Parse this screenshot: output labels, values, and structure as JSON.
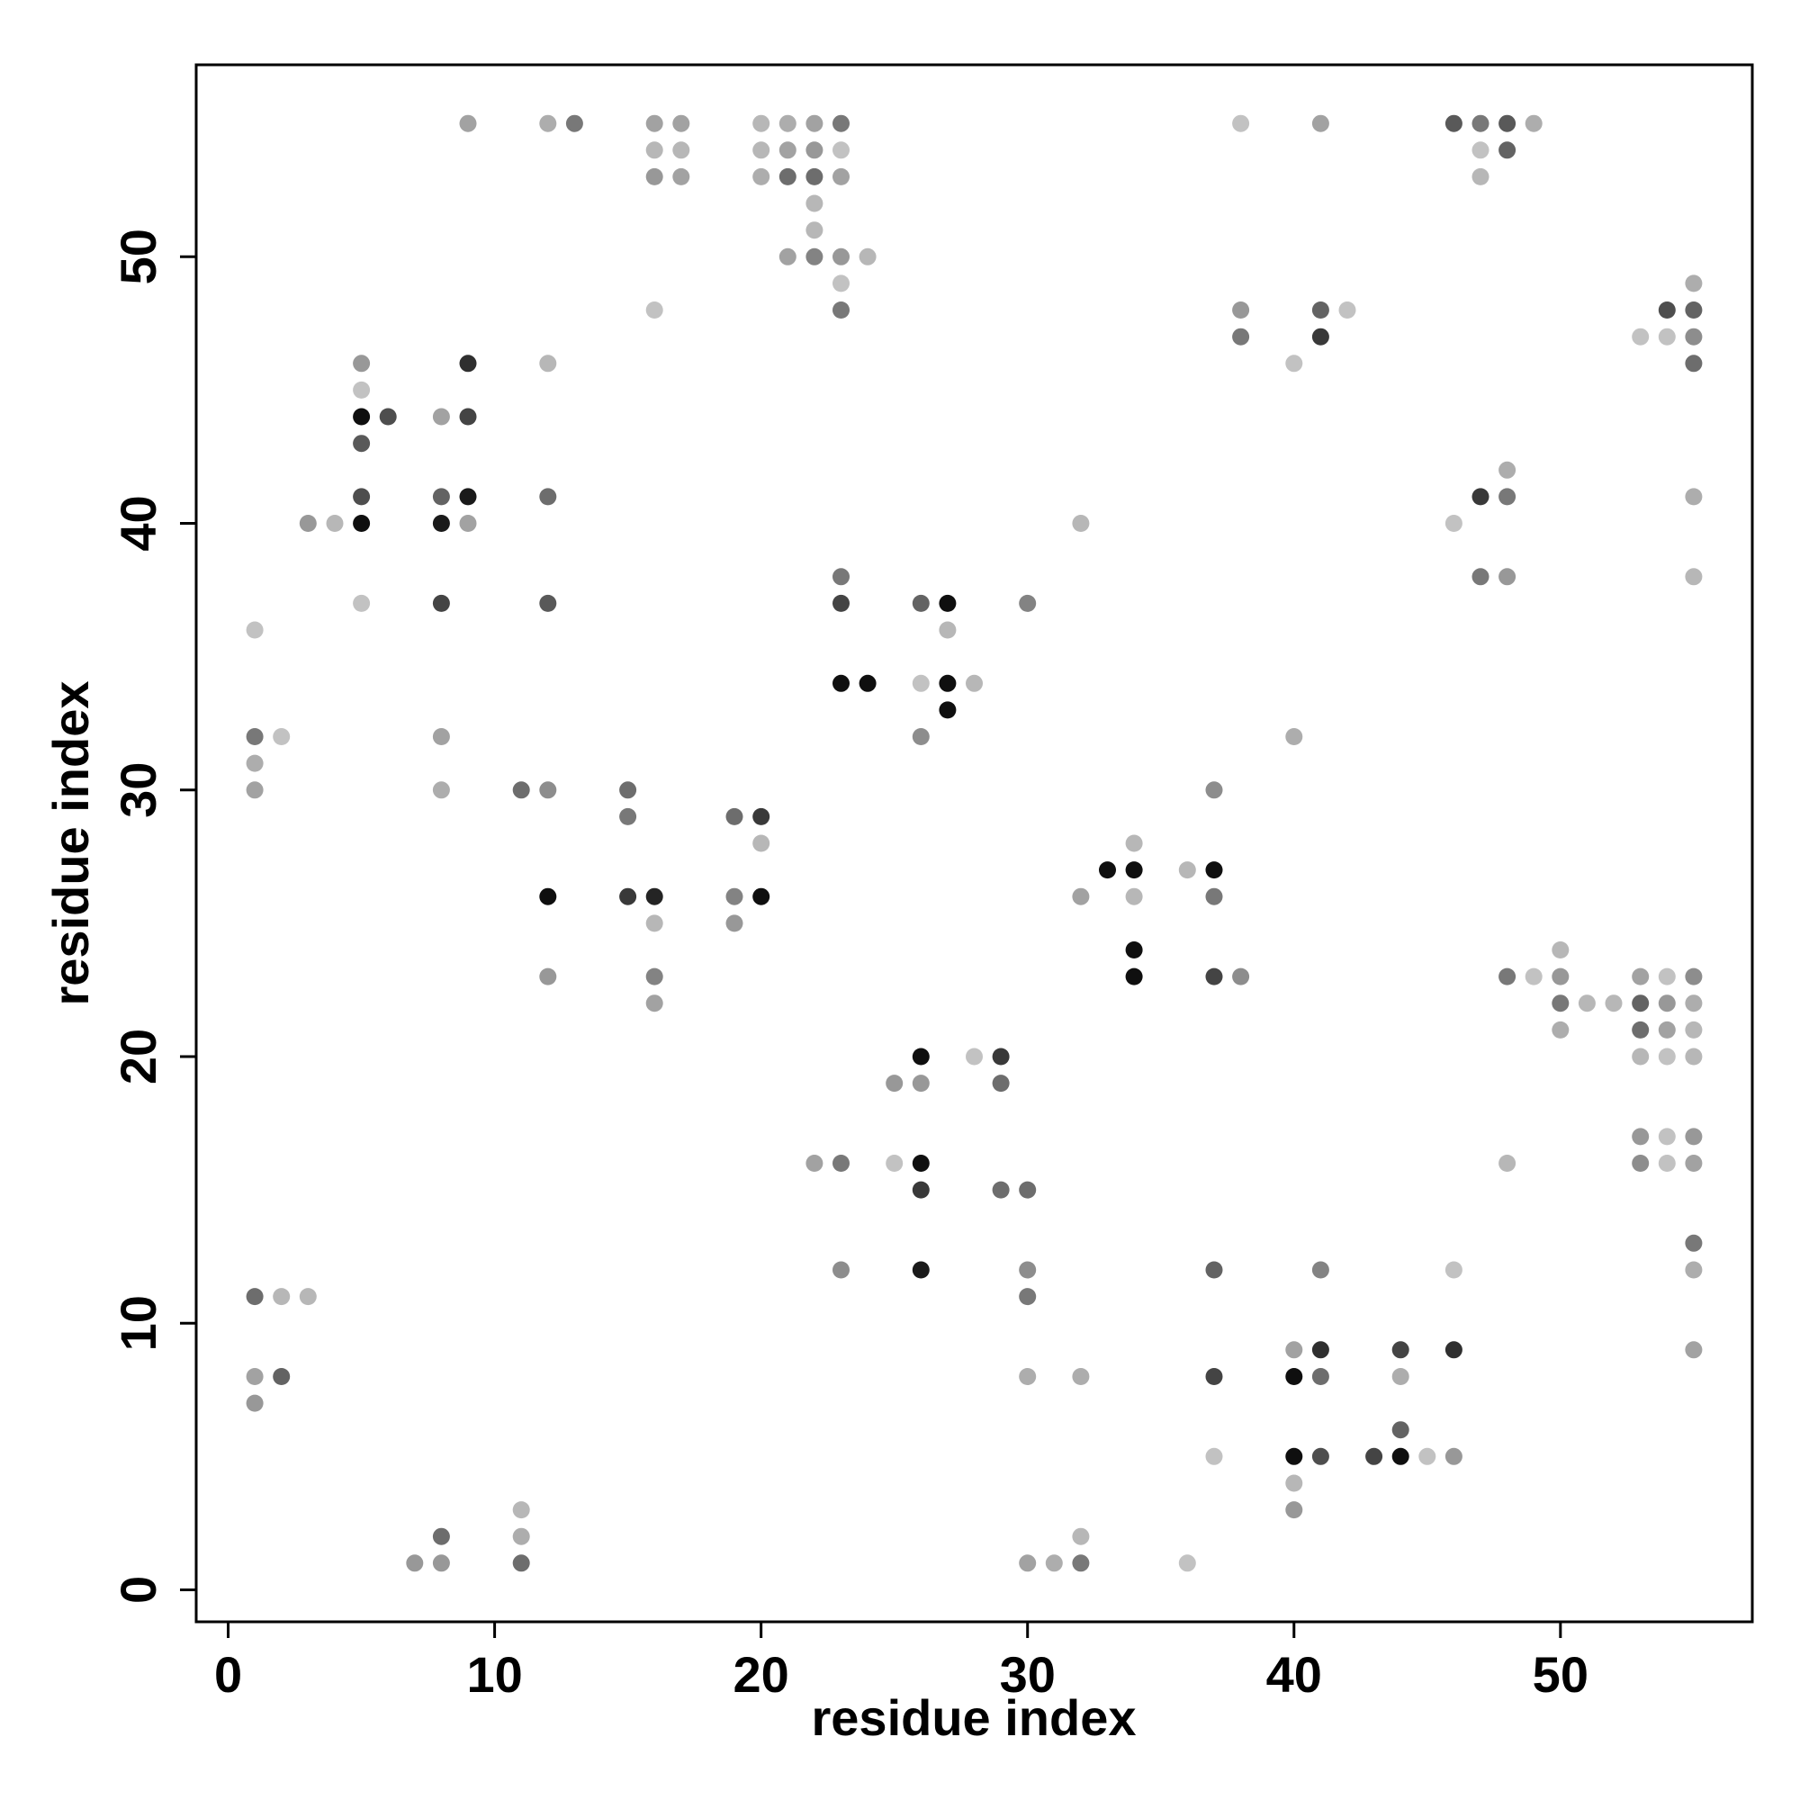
{
  "chart_data": {
    "type": "scatter",
    "title": "",
    "xlabel": "residue index",
    "ylabel": "residue index",
    "xlim": [
      -1.2,
      57.2
    ],
    "ylim": [
      -1.2,
      57.2
    ],
    "xticks": [
      0,
      10,
      20,
      30,
      40,
      50
    ],
    "yticks": [
      0,
      10,
      20,
      30,
      40,
      50
    ],
    "grid": false,
    "legend": "none",
    "value_encoding": "grayscale shade of each point (0 = light gray, 1 = black)",
    "points": [
      {
        "x": 1,
        "y": 7,
        "v": 0.35
      },
      {
        "x": 1,
        "y": 8,
        "v": 0.3
      },
      {
        "x": 1,
        "y": 11,
        "v": 0.55
      },
      {
        "x": 2,
        "y": 8,
        "v": 0.6
      },
      {
        "x": 2,
        "y": 11,
        "v": 0.2
      },
      {
        "x": 3,
        "y": 11,
        "v": 0.2
      },
      {
        "x": 1,
        "y": 30,
        "v": 0.3
      },
      {
        "x": 1,
        "y": 31,
        "v": 0.25
      },
      {
        "x": 1,
        "y": 32,
        "v": 0.5
      },
      {
        "x": 2,
        "y": 32,
        "v": 0.15
      },
      {
        "x": 1,
        "y": 36,
        "v": 0.15
      },
      {
        "x": 3,
        "y": 40,
        "v": 0.35
      },
      {
        "x": 4,
        "y": 40,
        "v": 0.2
      },
      {
        "x": 5,
        "y": 37,
        "v": 0.15
      },
      {
        "x": 5,
        "y": 40,
        "v": 1.0
      },
      {
        "x": 5,
        "y": 41,
        "v": 0.7
      },
      {
        "x": 5,
        "y": 43,
        "v": 0.65
      },
      {
        "x": 5,
        "y": 44,
        "v": 1.0
      },
      {
        "x": 5,
        "y": 45,
        "v": 0.15
      },
      {
        "x": 5,
        "y": 46,
        "v": 0.35
      },
      {
        "x": 6,
        "y": 44,
        "v": 0.7
      },
      {
        "x": 8,
        "y": 30,
        "v": 0.25
      },
      {
        "x": 8,
        "y": 32,
        "v": 0.3
      },
      {
        "x": 8,
        "y": 37,
        "v": 0.75
      },
      {
        "x": 8,
        "y": 40,
        "v": 0.95
      },
      {
        "x": 8,
        "y": 41,
        "v": 0.6
      },
      {
        "x": 8,
        "y": 44,
        "v": 0.3
      },
      {
        "x": 9,
        "y": 40,
        "v": 0.3
      },
      {
        "x": 9,
        "y": 41,
        "v": 0.95
      },
      {
        "x": 9,
        "y": 44,
        "v": 0.75
      },
      {
        "x": 9,
        "y": 46,
        "v": 0.85
      },
      {
        "x": 7,
        "y": 1,
        "v": 0.35
      },
      {
        "x": 8,
        "y": 1,
        "v": 0.35
      },
      {
        "x": 8,
        "y": 2,
        "v": 0.55
      },
      {
        "x": 11,
        "y": 1,
        "v": 0.55
      },
      {
        "x": 11,
        "y": 2,
        "v": 0.25
      },
      {
        "x": 11,
        "y": 3,
        "v": 0.2
      },
      {
        "x": 9,
        "y": 55,
        "v": 0.3
      },
      {
        "x": 12,
        "y": 55,
        "v": 0.25
      },
      {
        "x": 13,
        "y": 55,
        "v": 0.5
      },
      {
        "x": 11,
        "y": 30,
        "v": 0.55
      },
      {
        "x": 12,
        "y": 30,
        "v": 0.4
      },
      {
        "x": 12,
        "y": 23,
        "v": 0.35
      },
      {
        "x": 12,
        "y": 26,
        "v": 1.0
      },
      {
        "x": 12,
        "y": 37,
        "v": 0.65
      },
      {
        "x": 12,
        "y": 41,
        "v": 0.55
      },
      {
        "x": 12,
        "y": 46,
        "v": 0.2
      },
      {
        "x": 15,
        "y": 26,
        "v": 0.8
      },
      {
        "x": 15,
        "y": 29,
        "v": 0.5
      },
      {
        "x": 15,
        "y": 30,
        "v": 0.55
      },
      {
        "x": 16,
        "y": 22,
        "v": 0.3
      },
      {
        "x": 16,
        "y": 23,
        "v": 0.45
      },
      {
        "x": 16,
        "y": 25,
        "v": 0.2
      },
      {
        "x": 16,
        "y": 26,
        "v": 0.9
      },
      {
        "x": 16,
        "y": 48,
        "v": 0.15
      },
      {
        "x": 16,
        "y": 53,
        "v": 0.35
      },
      {
        "x": 16,
        "y": 54,
        "v": 0.2
      },
      {
        "x": 16,
        "y": 55,
        "v": 0.3
      },
      {
        "x": 17,
        "y": 53,
        "v": 0.3
      },
      {
        "x": 17,
        "y": 54,
        "v": 0.2
      },
      {
        "x": 17,
        "y": 55,
        "v": 0.3
      },
      {
        "x": 19,
        "y": 25,
        "v": 0.35
      },
      {
        "x": 19,
        "y": 26,
        "v": 0.45
      },
      {
        "x": 19,
        "y": 29,
        "v": 0.55
      },
      {
        "x": 20,
        "y": 26,
        "v": 1.0
      },
      {
        "x": 20,
        "y": 28,
        "v": 0.2
      },
      {
        "x": 20,
        "y": 29,
        "v": 0.8
      },
      {
        "x": 20,
        "y": 53,
        "v": 0.25
      },
      {
        "x": 20,
        "y": 54,
        "v": 0.2
      },
      {
        "x": 20,
        "y": 55,
        "v": 0.2
      },
      {
        "x": 21,
        "y": 50,
        "v": 0.3
      },
      {
        "x": 21,
        "y": 53,
        "v": 0.55
      },
      {
        "x": 21,
        "y": 54,
        "v": 0.3
      },
      {
        "x": 21,
        "y": 55,
        "v": 0.25
      },
      {
        "x": 22,
        "y": 50,
        "v": 0.45
      },
      {
        "x": 22,
        "y": 51,
        "v": 0.2
      },
      {
        "x": 22,
        "y": 52,
        "v": 0.2
      },
      {
        "x": 22,
        "y": 53,
        "v": 0.55
      },
      {
        "x": 22,
        "y": 54,
        "v": 0.35
      },
      {
        "x": 22,
        "y": 55,
        "v": 0.3
      },
      {
        "x": 23,
        "y": 48,
        "v": 0.5
      },
      {
        "x": 23,
        "y": 49,
        "v": 0.15
      },
      {
        "x": 23,
        "y": 50,
        "v": 0.35
      },
      {
        "x": 23,
        "y": 53,
        "v": 0.3
      },
      {
        "x": 23,
        "y": 54,
        "v": 0.15
      },
      {
        "x": 23,
        "y": 55,
        "v": 0.5
      },
      {
        "x": 24,
        "y": 50,
        "v": 0.2
      },
      {
        "x": 22,
        "y": 16,
        "v": 0.3
      },
      {
        "x": 23,
        "y": 16,
        "v": 0.5
      },
      {
        "x": 23,
        "y": 12,
        "v": 0.4
      },
      {
        "x": 23,
        "y": 34,
        "v": 1.0
      },
      {
        "x": 24,
        "y": 34,
        "v": 1.0
      },
      {
        "x": 23,
        "y": 37,
        "v": 0.75
      },
      {
        "x": 23,
        "y": 38,
        "v": 0.5
      },
      {
        "x": 25,
        "y": 16,
        "v": 0.15
      },
      {
        "x": 25,
        "y": 19,
        "v": 0.35
      },
      {
        "x": 26,
        "y": 12,
        "v": 0.95
      },
      {
        "x": 26,
        "y": 15,
        "v": 0.8
      },
      {
        "x": 26,
        "y": 16,
        "v": 1.0
      },
      {
        "x": 26,
        "y": 19,
        "v": 0.35
      },
      {
        "x": 26,
        "y": 20,
        "v": 1.0
      },
      {
        "x": 26,
        "y": 32,
        "v": 0.4
      },
      {
        "x": 26,
        "y": 34,
        "v": 0.15
      },
      {
        "x": 26,
        "y": 37,
        "v": 0.6
      },
      {
        "x": 27,
        "y": 33,
        "v": 1.0
      },
      {
        "x": 27,
        "y": 34,
        "v": 1.0
      },
      {
        "x": 27,
        "y": 36,
        "v": 0.2
      },
      {
        "x": 27,
        "y": 37,
        "v": 1.0
      },
      {
        "x": 28,
        "y": 34,
        "v": 0.2
      },
      {
        "x": 28,
        "y": 20,
        "v": 0.15
      },
      {
        "x": 29,
        "y": 15,
        "v": 0.55
      },
      {
        "x": 29,
        "y": 19,
        "v": 0.55
      },
      {
        "x": 29,
        "y": 20,
        "v": 0.8
      },
      {
        "x": 30,
        "y": 11,
        "v": 0.5
      },
      {
        "x": 30,
        "y": 12,
        "v": 0.4
      },
      {
        "x": 30,
        "y": 15,
        "v": 0.55
      },
      {
        "x": 30,
        "y": 8,
        "v": 0.25
      },
      {
        "x": 30,
        "y": 37,
        "v": 0.45
      },
      {
        "x": 30,
        "y": 1,
        "v": 0.3
      },
      {
        "x": 31,
        "y": 1,
        "v": 0.25
      },
      {
        "x": 32,
        "y": 1,
        "v": 0.5
      },
      {
        "x": 32,
        "y": 2,
        "v": 0.2
      },
      {
        "x": 32,
        "y": 8,
        "v": 0.25
      },
      {
        "x": 32,
        "y": 26,
        "v": 0.3
      },
      {
        "x": 32,
        "y": 40,
        "v": 0.2
      },
      {
        "x": 33,
        "y": 27,
        "v": 1.0
      },
      {
        "x": 34,
        "y": 27,
        "v": 1.0
      },
      {
        "x": 34,
        "y": 26,
        "v": 0.2
      },
      {
        "x": 34,
        "y": 28,
        "v": 0.2
      },
      {
        "x": 34,
        "y": 24,
        "v": 1.0
      },
      {
        "x": 34,
        "y": 23,
        "v": 1.0
      },
      {
        "x": 36,
        "y": 27,
        "v": 0.2
      },
      {
        "x": 37,
        "y": 27,
        "v": 1.0
      },
      {
        "x": 37,
        "y": 26,
        "v": 0.5
      },
      {
        "x": 37,
        "y": 30,
        "v": 0.4
      },
      {
        "x": 37,
        "y": 23,
        "v": 0.75
      },
      {
        "x": 38,
        "y": 23,
        "v": 0.4
      },
      {
        "x": 36,
        "y": 1,
        "v": 0.15
      },
      {
        "x": 37,
        "y": 5,
        "v": 0.15
      },
      {
        "x": 37,
        "y": 8,
        "v": 0.75
      },
      {
        "x": 37,
        "y": 12,
        "v": 0.6
      },
      {
        "x": 38,
        "y": 47,
        "v": 0.5
      },
      {
        "x": 38,
        "y": 48,
        "v": 0.35
      },
      {
        "x": 38,
        "y": 55,
        "v": 0.15
      },
      {
        "x": 40,
        "y": 46,
        "v": 0.15
      },
      {
        "x": 40,
        "y": 32,
        "v": 0.25
      },
      {
        "x": 41,
        "y": 47,
        "v": 0.8
      },
      {
        "x": 41,
        "y": 48,
        "v": 0.6
      },
      {
        "x": 41,
        "y": 55,
        "v": 0.3
      },
      {
        "x": 42,
        "y": 48,
        "v": 0.15
      },
      {
        "x": 40,
        "y": 3,
        "v": 0.35
      },
      {
        "x": 40,
        "y": 4,
        "v": 0.2
      },
      {
        "x": 40,
        "y": 5,
        "v": 1.0
      },
      {
        "x": 40,
        "y": 8,
        "v": 1.0
      },
      {
        "x": 40,
        "y": 9,
        "v": 0.3
      },
      {
        "x": 41,
        "y": 5,
        "v": 0.7
      },
      {
        "x": 41,
        "y": 8,
        "v": 0.55
      },
      {
        "x": 41,
        "y": 9,
        "v": 0.85
      },
      {
        "x": 41,
        "y": 12,
        "v": 0.45
      },
      {
        "x": 43,
        "y": 5,
        "v": 0.75
      },
      {
        "x": 44,
        "y": 5,
        "v": 1.0
      },
      {
        "x": 44,
        "y": 6,
        "v": 0.6
      },
      {
        "x": 44,
        "y": 8,
        "v": 0.25
      },
      {
        "x": 44,
        "y": 9,
        "v": 0.75
      },
      {
        "x": 45,
        "y": 5,
        "v": 0.15
      },
      {
        "x": 46,
        "y": 5,
        "v": 0.35
      },
      {
        "x": 46,
        "y": 9,
        "v": 0.85
      },
      {
        "x": 46,
        "y": 12,
        "v": 0.15
      },
      {
        "x": 46,
        "y": 40,
        "v": 0.15
      },
      {
        "x": 47,
        "y": 38,
        "v": 0.5
      },
      {
        "x": 47,
        "y": 41,
        "v": 0.8
      },
      {
        "x": 48,
        "y": 38,
        "v": 0.35
      },
      {
        "x": 48,
        "y": 41,
        "v": 0.5
      },
      {
        "x": 48,
        "y": 42,
        "v": 0.25
      },
      {
        "x": 48,
        "y": 16,
        "v": 0.2
      },
      {
        "x": 46,
        "y": 55,
        "v": 0.65
      },
      {
        "x": 47,
        "y": 53,
        "v": 0.2
      },
      {
        "x": 47,
        "y": 54,
        "v": 0.15
      },
      {
        "x": 47,
        "y": 55,
        "v": 0.5
      },
      {
        "x": 48,
        "y": 54,
        "v": 0.6
      },
      {
        "x": 48,
        "y": 55,
        "v": 0.65
      },
      {
        "x": 49,
        "y": 55,
        "v": 0.25
      },
      {
        "x": 48,
        "y": 23,
        "v": 0.5
      },
      {
        "x": 49,
        "y": 23,
        "v": 0.15
      },
      {
        "x": 50,
        "y": 21,
        "v": 0.25
      },
      {
        "x": 50,
        "y": 22,
        "v": 0.5
      },
      {
        "x": 50,
        "y": 23,
        "v": 0.35
      },
      {
        "x": 50,
        "y": 24,
        "v": 0.2
      },
      {
        "x": 51,
        "y": 22,
        "v": 0.2
      },
      {
        "x": 52,
        "y": 22,
        "v": 0.2
      },
      {
        "x": 53,
        "y": 16,
        "v": 0.4
      },
      {
        "x": 53,
        "y": 17,
        "v": 0.35
      },
      {
        "x": 53,
        "y": 20,
        "v": 0.2
      },
      {
        "x": 53,
        "y": 21,
        "v": 0.55
      },
      {
        "x": 53,
        "y": 22,
        "v": 0.6
      },
      {
        "x": 53,
        "y": 23,
        "v": 0.3
      },
      {
        "x": 54,
        "y": 16,
        "v": 0.15
      },
      {
        "x": 54,
        "y": 17,
        "v": 0.15
      },
      {
        "x": 54,
        "y": 20,
        "v": 0.15
      },
      {
        "x": 54,
        "y": 21,
        "v": 0.3
      },
      {
        "x": 54,
        "y": 22,
        "v": 0.35
      },
      {
        "x": 54,
        "y": 23,
        "v": 0.15
      },
      {
        "x": 55,
        "y": 9,
        "v": 0.3
      },
      {
        "x": 55,
        "y": 12,
        "v": 0.25
      },
      {
        "x": 55,
        "y": 13,
        "v": 0.5
      },
      {
        "x": 55,
        "y": 16,
        "v": 0.3
      },
      {
        "x": 55,
        "y": 17,
        "v": 0.35
      },
      {
        "x": 55,
        "y": 20,
        "v": 0.2
      },
      {
        "x": 55,
        "y": 21,
        "v": 0.2
      },
      {
        "x": 55,
        "y": 22,
        "v": 0.25
      },
      {
        "x": 55,
        "y": 23,
        "v": 0.4
      },
      {
        "x": 53,
        "y": 47,
        "v": 0.15
      },
      {
        "x": 54,
        "y": 47,
        "v": 0.15
      },
      {
        "x": 54,
        "y": 48,
        "v": 0.7
      },
      {
        "x": 55,
        "y": 46,
        "v": 0.55
      },
      {
        "x": 55,
        "y": 47,
        "v": 0.4
      },
      {
        "x": 55,
        "y": 48,
        "v": 0.6
      },
      {
        "x": 55,
        "y": 49,
        "v": 0.25
      },
      {
        "x": 55,
        "y": 38,
        "v": 0.2
      },
      {
        "x": 55,
        "y": 41,
        "v": 0.25
      }
    ]
  }
}
